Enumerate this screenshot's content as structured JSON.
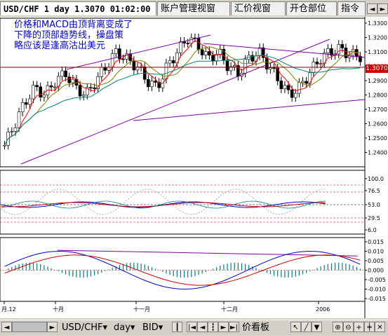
{
  "tabs": [
    {
      "label": "USD/CHF 1 day 1.3070 01:02:00",
      "active": true
    },
    {
      "label": "账户管理视窗",
      "active": false
    },
    {
      "label": "汇价视窗",
      "active": false
    },
    {
      "label": "开仓部位",
      "active": false
    },
    {
      "label": "指令",
      "active": false
    }
  ],
  "annotation": "价格和MACD由顶背离变成了\n下降的顶部趋势线，操盘策\n略应该是逢高沽出美元",
  "current_price_tag": "1.3070",
  "price_axis": [
    "1.3300",
    "1.3200",
    "1.3100",
    "1.3000",
    "1.2900",
    "1.2800",
    "1.2700",
    "1.2600",
    "1.2500",
    "1.2400"
  ],
  "rsi_axis": [
    "100.0",
    "76.5",
    "53.0",
    "29.5",
    "6.0"
  ],
  "macd_axis": [
    "0.015",
    "0.010",
    "0.005",
    "0.000",
    "-0.005",
    "-0.010",
    "-0.015"
  ],
  "time_axis": [
    "月.12",
    "十月",
    "十一月",
    "十二月",
    "2006"
  ],
  "toolbar": {
    "symbol": "USD/CHF",
    "period": "day",
    "side": "BID",
    "viewer": "价看板"
  },
  "colors": {
    "up_candle": "#ffffff",
    "down_candle": "#000000",
    "trendline": "#8000a0",
    "price_line": "#8b0000",
    "ma_fast": "#ff0000",
    "ma_mid": "#808000",
    "ma_slow": "#008080"
  }
}
